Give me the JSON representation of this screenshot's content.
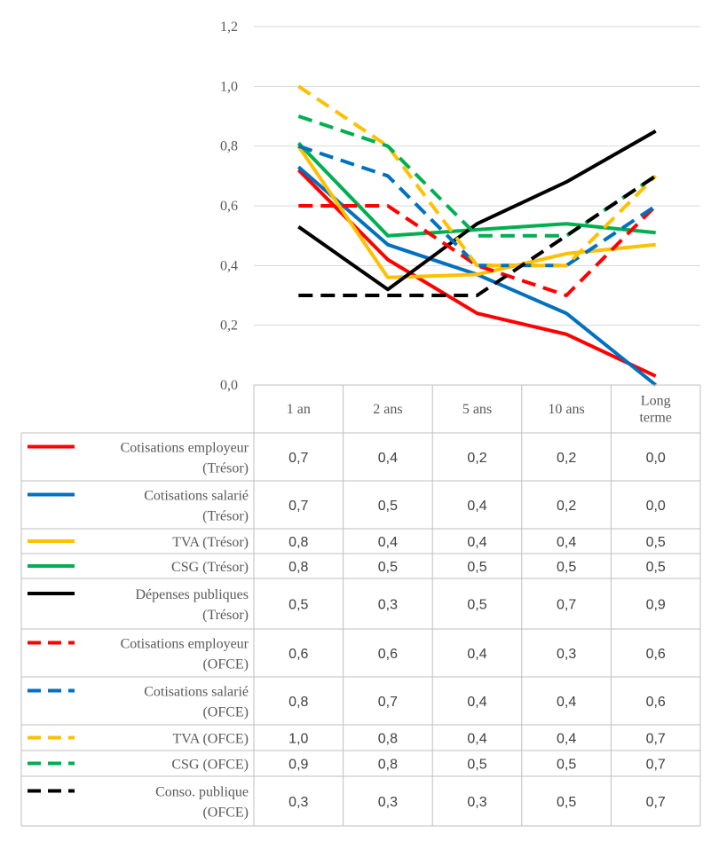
{
  "chart_data": {
    "type": "line",
    "categories": [
      "1 an",
      "2 ans",
      "5 ans",
      "10 ans",
      "Long terme"
    ],
    "category_lines": [
      [
        "1 an"
      ],
      [
        "2 ans"
      ],
      [
        "5 ans"
      ],
      [
        "10 ans"
      ],
      [
        "Long",
        "terme"
      ]
    ],
    "ylim": [
      0,
      1.2
    ],
    "yticks": [
      "0,0",
      "0,2",
      "0,4",
      "0,6",
      "0,8",
      "1,0",
      "1,2"
    ],
    "ytick_values": [
      0,
      0.2,
      0.4,
      0.6,
      0.8,
      1.0,
      1.2
    ],
    "grid": true,
    "data_table": true,
    "series": [
      {
        "name": "Cotisations employeur (Trésor)",
        "name_lines": [
          "Cotisations employeur",
          "(Trésor)"
        ],
        "color": "#ff0000",
        "dash": "solid",
        "values": [
          0.72,
          0.42,
          0.24,
          0.17,
          0.03
        ],
        "table": [
          "0,7",
          "0,4",
          "0,2",
          "0,2",
          "0,0"
        ]
      },
      {
        "name": "Cotisations salarié (Trésor)",
        "name_lines": [
          "Cotisations salarié",
          "(Trésor)"
        ],
        "color": "#0070c0",
        "dash": "solid",
        "values": [
          0.73,
          0.47,
          0.37,
          0.24,
          0.0
        ],
        "table": [
          "0,7",
          "0,5",
          "0,4",
          "0,2",
          "0,0"
        ]
      },
      {
        "name": "TVA (Trésor)",
        "name_lines": [
          "TVA (Trésor)"
        ],
        "color": "#ffc000",
        "dash": "solid",
        "values": [
          0.8,
          0.36,
          0.37,
          0.44,
          0.47
        ],
        "table": [
          "0,8",
          "0,4",
          "0,4",
          "0,4",
          "0,5"
        ]
      },
      {
        "name": "CSG (Trésor)",
        "name_lines": [
          "CSG (Trésor)"
        ],
        "color": "#00b050",
        "dash": "solid",
        "values": [
          0.81,
          0.5,
          0.52,
          0.54,
          0.51
        ],
        "table": [
          "0,8",
          "0,5",
          "0,5",
          "0,5",
          "0,5"
        ]
      },
      {
        "name": "Dépenses publiques (Trésor)",
        "name_lines": [
          "Dépenses publiques",
          "(Trésor)"
        ],
        "color": "#000000",
        "dash": "solid",
        "values": [
          0.53,
          0.32,
          0.54,
          0.68,
          0.85
        ],
        "table": [
          "0,5",
          "0,3",
          "0,5",
          "0,7",
          "0,9"
        ]
      },
      {
        "name": "Cotisations employeur (OFCE)",
        "name_lines": [
          "Cotisations employeur",
          "(OFCE)"
        ],
        "color": "#ff0000",
        "dash": "dashed",
        "values": [
          0.6,
          0.6,
          0.4,
          0.3,
          0.6
        ],
        "table": [
          "0,6",
          "0,6",
          "0,4",
          "0,3",
          "0,6"
        ]
      },
      {
        "name": "Cotisations salarié (OFCE)",
        "name_lines": [
          "Cotisations salarié",
          "(OFCE)"
        ],
        "color": "#0070c0",
        "dash": "dashed",
        "values": [
          0.8,
          0.7,
          0.4,
          0.4,
          0.6
        ],
        "table": [
          "0,8",
          "0,7",
          "0,4",
          "0,4",
          "0,6"
        ]
      },
      {
        "name": "TVA (OFCE)",
        "name_lines": [
          "TVA (OFCE)"
        ],
        "color": "#ffc000",
        "dash": "dashed",
        "values": [
          1.0,
          0.8,
          0.4,
          0.4,
          0.7
        ],
        "table": [
          "1,0",
          "0,8",
          "0,4",
          "0,4",
          "0,7"
        ]
      },
      {
        "name": "CSG (OFCE)",
        "name_lines": [
          "CSG (OFCE)"
        ],
        "color": "#00b050",
        "dash": "dashed",
        "values": [
          0.9,
          0.8,
          0.5,
          0.5,
          0.7
        ],
        "table": [
          "0,9",
          "0,8",
          "0,5",
          "0,5",
          "0,7"
        ]
      },
      {
        "name": "Conso. publique (OFCE)",
        "name_lines": [
          "Conso. publique",
          "(OFCE)"
        ],
        "color": "#000000",
        "dash": "dashed",
        "values": [
          0.3,
          0.3,
          0.3,
          0.5,
          0.7
        ],
        "table": [
          "0,3",
          "0,3",
          "0,3",
          "0,5",
          "0,7"
        ]
      }
    ]
  }
}
